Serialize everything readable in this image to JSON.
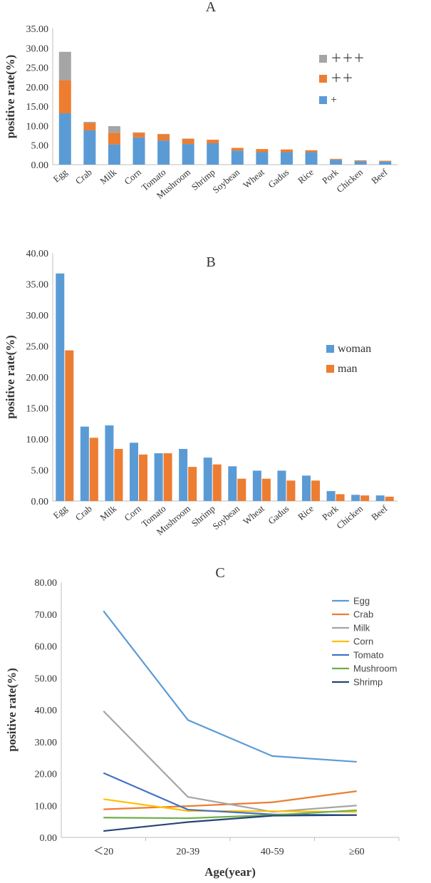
{
  "chart_data": [
    {
      "id": "A",
      "type": "bar",
      "stacked": true,
      "title": "A",
      "ylabel": "positive rate(%)",
      "xlabel": "",
      "ylim": [
        0,
        35
      ],
      "yticks": [
        "0.00",
        "5.00",
        "10.00",
        "15.00",
        "20.00",
        "25.00",
        "30.00",
        "35.00"
      ],
      "legend_position": "right",
      "categories": [
        "Egg",
        "Crab",
        "Milk",
        "Corn",
        "Tomato",
        "Mushroom",
        "Shrimp",
        "Soybean",
        "Wheat",
        "Gadus",
        "Rice",
        "Pork",
        "Chicken",
        "Beef"
      ],
      "series": [
        {
          "name": "+",
          "color": "#5b9bd5",
          "values": [
            13.2,
            8.8,
            5.2,
            7.0,
            6.2,
            5.3,
            5.5,
            3.6,
            3.2,
            3.2,
            3.2,
            1.2,
            0.9,
            0.8
          ]
        },
        {
          "name": "＋＋",
          "color": "#ed7d31",
          "values": [
            8.5,
            1.9,
            3.0,
            1.2,
            1.6,
            1.3,
            0.9,
            0.7,
            0.8,
            0.7,
            0.5,
            0.2,
            0.2,
            0.2
          ]
        },
        {
          "name": "＋＋＋",
          "color": "#a5a5a5",
          "values": [
            7.3,
            0.3,
            1.7,
            0.1,
            0.1,
            0.1,
            0.0,
            0.0,
            0.0,
            0.0,
            0.0,
            0.1,
            0.0,
            0.0
          ]
        }
      ]
    },
    {
      "id": "B",
      "type": "bar",
      "stacked": false,
      "title": "B",
      "ylabel": "positive rate(%)",
      "xlabel": "",
      "ylim": [
        0,
        40
      ],
      "yticks": [
        "0.00",
        "5.00",
        "10.00",
        "15.00",
        "20.00",
        "25.00",
        "30.00",
        "35.00",
        "40.00"
      ],
      "legend_position": "right",
      "categories": [
        "Egg",
        "Crab",
        "Milk",
        "Corn",
        "Tomato",
        "Mushroom",
        "Shrimp",
        "Soybean",
        "Wheat",
        "Gadus",
        "Rice",
        "Pork",
        "Chicken",
        "Beef"
      ],
      "series": [
        {
          "name": "woman",
          "color": "#5b9bd5",
          "values": [
            36.7,
            12.0,
            12.2,
            9.4,
            7.7,
            8.4,
            7.0,
            5.6,
            4.9,
            4.9,
            4.1,
            1.6,
            1.0,
            0.9
          ]
        },
        {
          "name": "man",
          "color": "#ed7d31",
          "values": [
            24.3,
            10.2,
            8.4,
            7.5,
            7.7,
            5.5,
            5.9,
            3.6,
            3.6,
            3.3,
            3.3,
            1.1,
            0.9,
            0.7
          ]
        }
      ]
    },
    {
      "id": "C",
      "type": "line",
      "title": "C",
      "ylabel": "positive rate(%)",
      "xlabel": "Age(year)",
      "ylim": [
        0,
        80
      ],
      "yticks": [
        "0.00",
        "10.00",
        "20.00",
        "30.00",
        "40.00",
        "50.00",
        "60.00",
        "70.00",
        "80.00"
      ],
      "legend_position": "top-right",
      "categories": [
        "＜20",
        "20-39",
        "40-59",
        "≥60"
      ],
      "series": [
        {
          "name": "Egg",
          "color": "#5b9bd5",
          "values": [
            71.0,
            36.8,
            25.5,
            23.7
          ]
        },
        {
          "name": "Crab",
          "color": "#ed7d31",
          "values": [
            8.8,
            9.8,
            11.0,
            14.5
          ]
        },
        {
          "name": "Milk",
          "color": "#a5a5a5",
          "values": [
            39.6,
            12.7,
            8.0,
            10.0
          ]
        },
        {
          "name": "Corn",
          "color": "#ffc000",
          "values": [
            12.0,
            8.3,
            8.2,
            8.0
          ]
        },
        {
          "name": "Tomato",
          "color": "#4472c4",
          "values": [
            20.2,
            8.7,
            7.2,
            7.0
          ]
        },
        {
          "name": "Mushroom",
          "color": "#70ad47",
          "values": [
            6.2,
            6.0,
            7.0,
            8.5
          ]
        },
        {
          "name": "Shrimp",
          "color": "#264478",
          "values": [
            2.0,
            4.8,
            6.8,
            7.0
          ]
        }
      ]
    }
  ]
}
